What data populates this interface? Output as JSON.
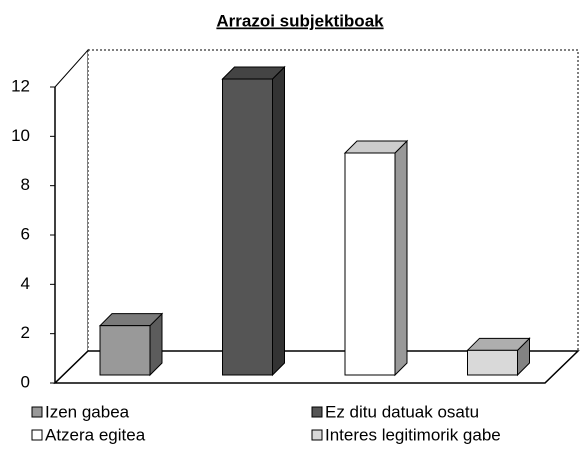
{
  "chart_data": {
    "type": "bar3d",
    "title": "Arrazoi subjektiboak",
    "series": [
      {
        "name": "Izen gabea",
        "color": "#999999",
        "values": [
          2
        ]
      },
      {
        "name": "Ez ditu datuak osatu",
        "color": "#555555",
        "values": [
          12
        ]
      },
      {
        "name": "Atzera egitea",
        "color": "#ffffff",
        "values": [
          9
        ]
      },
      {
        "name": "Interes legitimorik gabe",
        "color": "#d9d9d9",
        "values": [
          1
        ]
      }
    ],
    "ylim": [
      0,
      12
    ],
    "yticks": [
      0,
      2,
      4,
      6,
      8,
      10,
      12
    ],
    "legend": "bottom"
  }
}
